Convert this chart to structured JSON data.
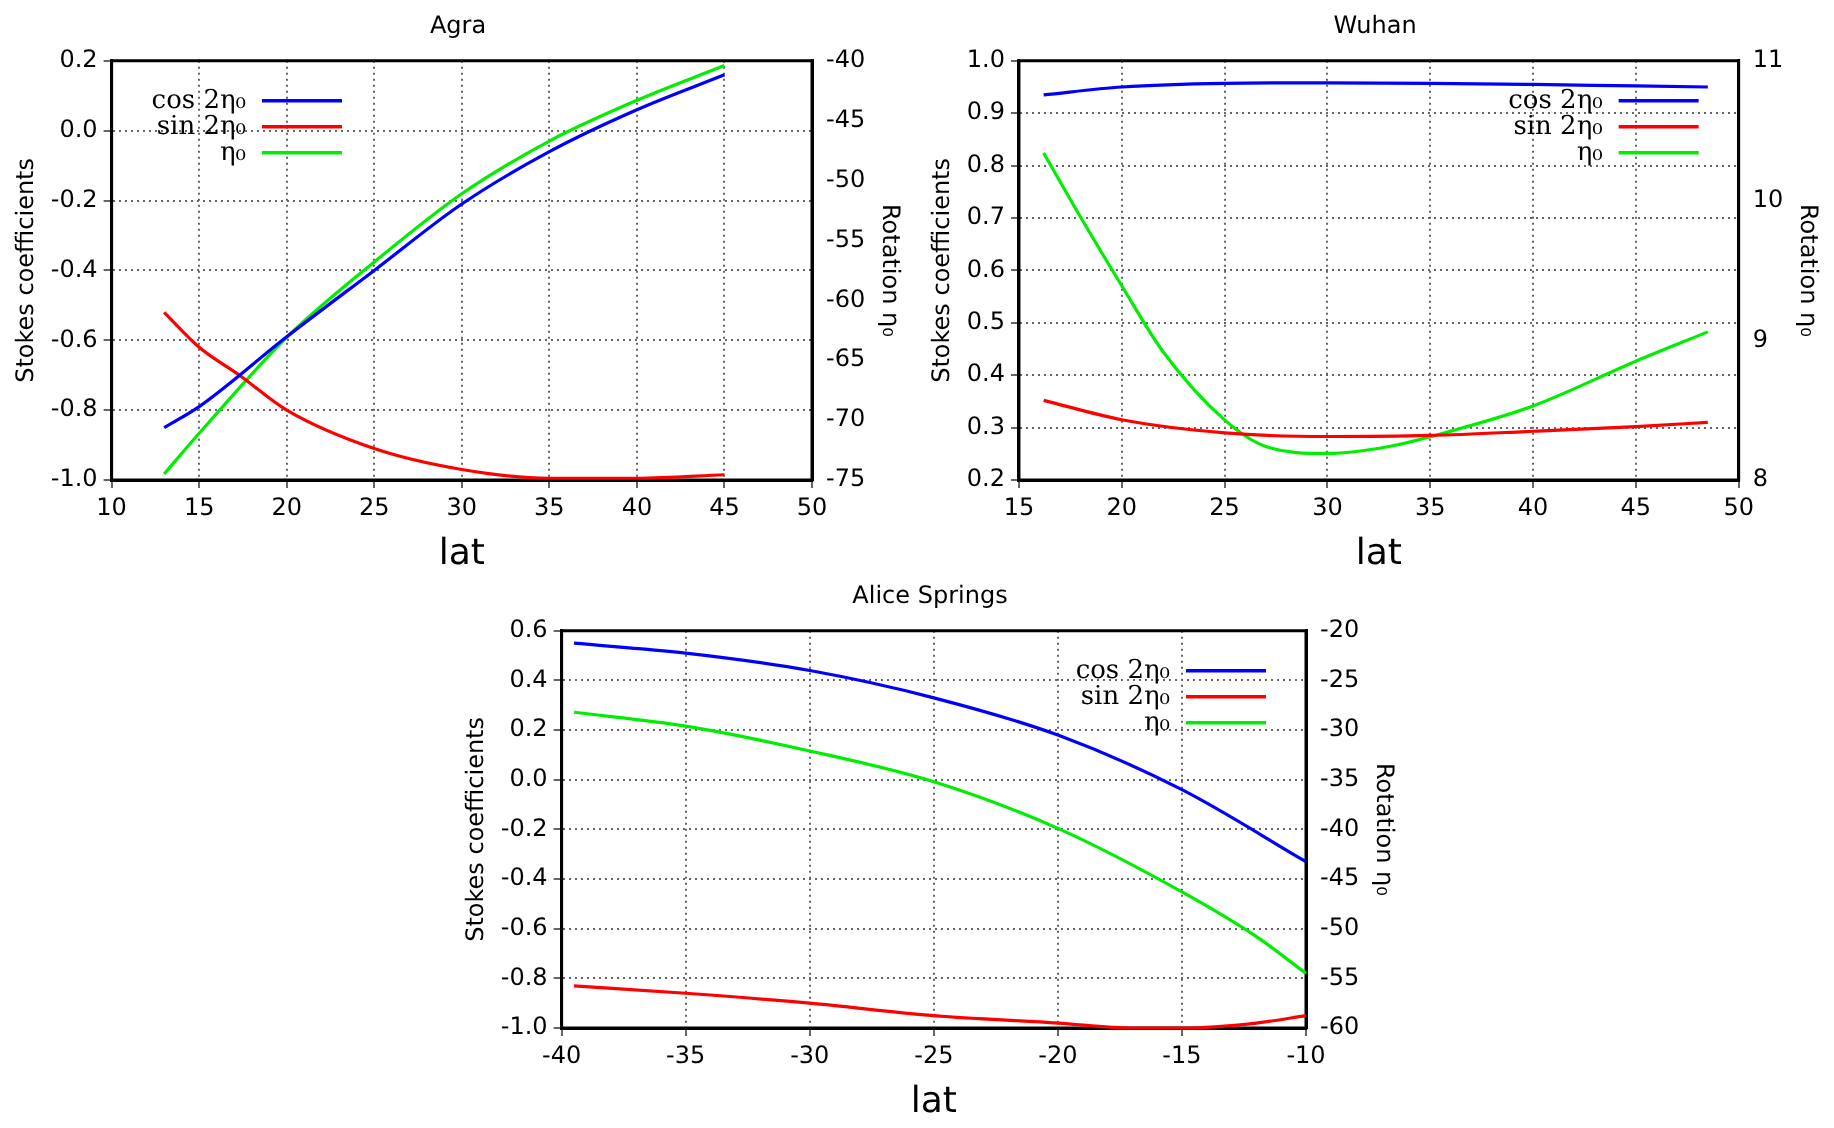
{
  "chart_data": [
    {
      "type": "line",
      "title": "Agra",
      "xlabel": "lat",
      "ylabel": "Stokes coefficients",
      "y2label": "Rotation η₀",
      "xlim": [
        10,
        50
      ],
      "xticks": [
        10,
        15,
        20,
        25,
        30,
        35,
        40,
        45,
        50
      ],
      "ylim": [
        -1,
        0.2
      ],
      "yticks": [
        {
          "value": -1,
          "label": "-1.0"
        },
        -0.8,
        -0.6,
        -0.4,
        -0.2,
        {
          "value": 0,
          "label": "0.0"
        },
        0.2
      ],
      "y2lim": [
        -75,
        -40
      ],
      "y2ticks": [
        -75,
        -70,
        -65,
        -60,
        -55,
        -50,
        -45,
        -40
      ],
      "grid": true,
      "legend": "top left",
      "line_style": "solid",
      "marker": "none",
      "series": [
        {
          "name": "cos 2η₀",
          "color": "#0000ff",
          "x": [
            13,
            15,
            20,
            25,
            30,
            35,
            40,
            45
          ],
          "values": [
            -0.85,
            -0.79,
            -0.59,
            -0.4,
            -0.21,
            -0.06,
            0.06,
            0.16
          ]
        },
        {
          "name": "sin 2η₀",
          "color": "#ff0000",
          "x": [
            13,
            15,
            17.3,
            20,
            25,
            30,
            35,
            40,
            45
          ],
          "values": [
            -0.52,
            -0.62,
            -0.7,
            -0.8,
            -0.91,
            -0.97,
            -0.995,
            -0.995,
            -0.985
          ]
        },
        {
          "name": "η₀",
          "color": "#00ee00",
          "axis": "y2",
          "x": [
            13,
            15,
            20,
            25,
            30,
            35,
            40,
            45
          ],
          "values": [
            -74.5,
            -71.1,
            -63.1,
            -56.8,
            -51.1,
            -46.7,
            -43.3,
            -40.4
          ]
        }
      ]
    },
    {
      "type": "line",
      "title": "Wuhan",
      "xlabel": "lat",
      "ylabel": "Stokes coefficients",
      "y2label": "Rotation η₀",
      "xlim": [
        15,
        50
      ],
      "xticks": [
        15,
        20,
        25,
        30,
        35,
        40,
        45,
        50
      ],
      "ylim": [
        0.2,
        1
      ],
      "yticks": [
        0.2,
        0.3,
        0.4,
        0.5,
        0.6,
        0.7,
        0.8,
        0.9,
        {
          "value": 1,
          "label": "1.0"
        }
      ],
      "y2lim": [
        8,
        11
      ],
      "y2ticks": [
        8,
        9,
        10,
        11
      ],
      "grid": true,
      "legend": "top right",
      "line_style": "solid",
      "marker": "none",
      "series": [
        {
          "name": "cos 2η₀",
          "color": "#0000ff",
          "x": [
            16.2,
            20,
            25,
            30,
            35,
            40,
            45,
            48.5
          ],
          "values": [
            0.935,
            0.95,
            0.957,
            0.958,
            0.957,
            0.955,
            0.952,
            0.95
          ]
        },
        {
          "name": "sin 2η₀",
          "color": "#ff0000",
          "x": [
            16.2,
            20,
            25,
            30,
            35,
            40,
            45,
            48.5
          ],
          "values": [
            0.352,
            0.315,
            0.29,
            0.283,
            0.285,
            0.293,
            0.302,
            0.31
          ]
        },
        {
          "name": "η₀",
          "color": "#00ee00",
          "axis": "y2",
          "x": [
            16.2,
            18,
            20,
            22,
            25,
            27,
            30,
            33,
            36,
            40,
            45,
            48.5
          ],
          "values": [
            10.34,
            9.88,
            9.39,
            8.92,
            8.43,
            8.24,
            8.19,
            8.24,
            8.35,
            8.53,
            8.85,
            9.06
          ]
        }
      ]
    },
    {
      "type": "line",
      "title": "Alice Springs",
      "xlabel": "lat",
      "ylabel": "Stokes coefficients",
      "y2label": "Rotation η₀",
      "xlim": [
        -40,
        -10
      ],
      "xticks": [
        -40,
        -35,
        -30,
        -25,
        -20,
        -15,
        -10
      ],
      "ylim": [
        -1,
        0.6
      ],
      "yticks": [
        {
          "value": -1,
          "label": "-1.0"
        },
        -0.8,
        -0.6,
        -0.4,
        -0.2,
        {
          "value": 0,
          "label": "0.0"
        },
        0.2,
        0.4,
        0.6
      ],
      "y2lim": [
        -60,
        -20
      ],
      "y2ticks": [
        -60,
        -55,
        -50,
        -45,
        -40,
        -35,
        -30,
        -25,
        -20
      ],
      "grid": true,
      "legend": "top right",
      "line_style": "solid",
      "marker": "none",
      "series": [
        {
          "name": "cos 2η₀",
          "color": "#0000ff",
          "x": [
            -39.5,
            -35,
            -30,
            -25,
            -20,
            -15,
            -10
          ],
          "values": [
            0.55,
            0.51,
            0.44,
            0.33,
            0.18,
            -0.04,
            -0.33
          ]
        },
        {
          "name": "sin 2η₀",
          "color": "#ff0000",
          "x": [
            -39.5,
            -35,
            -30,
            -25,
            -20,
            -17,
            -15,
            -12,
            -10
          ],
          "values": [
            -0.83,
            -0.86,
            -0.9,
            -0.95,
            -0.98,
            -1,
            -1,
            -0.98,
            -0.95
          ]
        },
        {
          "name": "η₀",
          "color": "#00ee00",
          "axis": "y2",
          "x": [
            -39.5,
            -35,
            -30,
            -25,
            -20,
            -15,
            -12,
            -10
          ],
          "values": [
            -28.2,
            -29.6,
            -32.1,
            -35.2,
            -39.9,
            -46.3,
            -50.8,
            -54.5
          ]
        }
      ]
    }
  ]
}
